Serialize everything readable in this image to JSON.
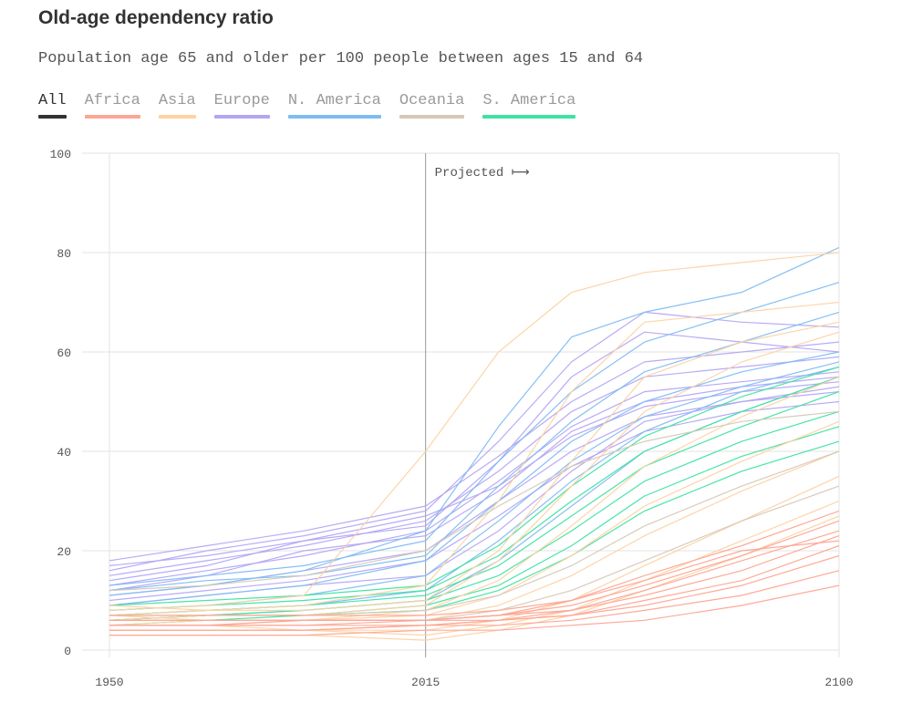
{
  "title": "Old-age dependency ratio",
  "subtitle": "Population age 65 and older per 100 people between ages 15 and 64",
  "legend": {
    "items": [
      {
        "label": "All",
        "color": "#333333",
        "active": true
      },
      {
        "label": "Africa",
        "color": "#fda594",
        "active": false
      },
      {
        "label": "Asia",
        "color": "#fdd2a4",
        "active": false
      },
      {
        "label": "Europe",
        "color": "#b3a6f5",
        "active": false
      },
      {
        "label": "N. America",
        "color": "#7fbcf2",
        "active": false
      },
      {
        "label": "Oceania",
        "color": "#d6c8b7",
        "active": false
      },
      {
        "label": "S. America",
        "color": "#3ee3a1",
        "active": false
      }
    ]
  },
  "chart_data": {
    "type": "line",
    "xlim": [
      1950,
      2100
    ],
    "ylim": [
      0,
      100
    ],
    "x_ticks": [
      1950,
      2015,
      2100
    ],
    "y_ticks": [
      0,
      20,
      40,
      60,
      80,
      100
    ],
    "grid": true,
    "annotation": {
      "text": "Projected ⟼",
      "x": 2015
    },
    "x": [
      1950,
      1970,
      1990,
      2015,
      2030,
      2045,
      2060,
      2080,
      2100
    ],
    "series": [
      {
        "region": "Europe",
        "color": "#b3a6f5",
        "values": [
          18,
          21,
          24,
          29,
          39,
          50,
          58,
          60,
          62
        ]
      },
      {
        "region": "Europe",
        "color": "#b3a6f5",
        "values": [
          15,
          18,
          21,
          26,
          36,
          48,
          55,
          57,
          59
        ]
      },
      {
        "region": "Europe",
        "color": "#b3a6f5",
        "values": [
          13,
          16,
          19,
          24,
          34,
          45,
          52,
          54,
          56
        ]
      },
      {
        "region": "Europe",
        "color": "#b3a6f5",
        "values": [
          16,
          20,
          23,
          28,
          42,
          58,
          68,
          66,
          65
        ]
      },
      {
        "region": "Europe",
        "color": "#b3a6f5",
        "values": [
          11,
          13,
          16,
          20,
          30,
          40,
          47,
          50,
          52
        ]
      },
      {
        "region": "Europe",
        "color": "#b3a6f5",
        "values": [
          12,
          15,
          20,
          23,
          32,
          44,
          50,
          53,
          55
        ]
      },
      {
        "region": "Europe",
        "color": "#b3a6f5",
        "values": [
          14,
          17,
          22,
          25,
          38,
          55,
          64,
          62,
          60
        ]
      },
      {
        "region": "Europe",
        "color": "#b3a6f5",
        "values": [
          10,
          12,
          14,
          18,
          27,
          37,
          44,
          48,
          50
        ]
      },
      {
        "region": "Europe",
        "color": "#b3a6f5",
        "values": [
          17,
          19,
          22,
          27,
          33,
          43,
          49,
          52,
          54
        ]
      },
      {
        "region": "Europe",
        "color": "#b3a6f5",
        "values": [
          9,
          11,
          13,
          15,
          24,
          36,
          46,
          50,
          53
        ]
      },
      {
        "region": "N. America",
        "color": "#7fbcf2",
        "values": [
          13,
          15,
          17,
          22,
          38,
          52,
          62,
          68,
          74
        ]
      },
      {
        "region": "N. America",
        "color": "#7fbcf2",
        "values": [
          11,
          13,
          16,
          24,
          45,
          63,
          68,
          72,
          81
        ]
      },
      {
        "region": "N. America",
        "color": "#7fbcf2",
        "values": [
          9,
          11,
          13,
          18,
          30,
          42,
          50,
          56,
          60
        ]
      },
      {
        "region": "N. America",
        "color": "#7fbcf2",
        "values": [
          8,
          9,
          11,
          15,
          26,
          38,
          47,
          53,
          58
        ]
      },
      {
        "region": "N. America",
        "color": "#7fbcf2",
        "values": [
          7,
          8,
          9,
          12,
          22,
          34,
          44,
          52,
          57
        ]
      },
      {
        "region": "N. America",
        "color": "#7fbcf2",
        "values": [
          12,
          14,
          15,
          19,
          33,
          46,
          56,
          62,
          68
        ]
      },
      {
        "region": "N. America",
        "color": "#7fbcf2",
        "values": [
          6,
          7,
          8,
          10,
          18,
          29,
          40,
          48,
          55
        ]
      },
      {
        "region": "S. America",
        "color": "#3ee3a1",
        "values": [
          7,
          8,
          9,
          11,
          17,
          27,
          37,
          45,
          52
        ]
      },
      {
        "region": "S. America",
        "color": "#3ee3a1",
        "values": [
          6,
          7,
          8,
          10,
          15,
          24,
          34,
          42,
          48
        ]
      },
      {
        "region": "S. America",
        "color": "#3ee3a1",
        "values": [
          8,
          9,
          10,
          12,
          19,
          30,
          40,
          48,
          55
        ]
      },
      {
        "region": "S. America",
        "color": "#3ee3a1",
        "values": [
          5,
          6,
          7,
          9,
          13,
          21,
          31,
          39,
          45
        ]
      },
      {
        "region": "S. America",
        "color": "#3ee3a1",
        "values": [
          9,
          10,
          11,
          13,
          21,
          33,
          43,
          51,
          57
        ]
      },
      {
        "region": "S. America",
        "color": "#3ee3a1",
        "values": [
          6,
          7,
          7,
          8,
          12,
          19,
          28,
          36,
          42
        ]
      },
      {
        "region": "Asia",
        "color": "#fdd2a4",
        "values": [
          8,
          9,
          11,
          40,
          60,
          72,
          76,
          78,
          80
        ]
      },
      {
        "region": "Asia",
        "color": "#fdd2a4",
        "values": [
          7,
          8,
          9,
          13,
          30,
          52,
          66,
          68,
          70
        ]
      },
      {
        "region": "Asia",
        "color": "#fdd2a4",
        "values": [
          6,
          7,
          7,
          9,
          18,
          33,
          48,
          58,
          64
        ]
      },
      {
        "region": "Asia",
        "color": "#fdd2a4",
        "values": [
          5,
          6,
          6,
          8,
          14,
          25,
          37,
          47,
          55
        ]
      },
      {
        "region": "Asia",
        "color": "#fdd2a4",
        "values": [
          6,
          6,
          6,
          7,
          11,
          19,
          29,
          38,
          46
        ]
      },
      {
        "region": "Asia",
        "color": "#fdd2a4",
        "values": [
          7,
          6,
          6,
          6,
          9,
          15,
          23,
          32,
          40
        ]
      },
      {
        "region": "Asia",
        "color": "#fdd2a4",
        "values": [
          5,
          5,
          4,
          4,
          6,
          10,
          17,
          26,
          35
        ]
      },
      {
        "region": "Asia",
        "color": "#fdd2a4",
        "values": [
          4,
          4,
          4,
          3,
          5,
          8,
          14,
          22,
          30
        ]
      },
      {
        "region": "Asia",
        "color": "#fdd2a4",
        "values": [
          3,
          3,
          3,
          2,
          4,
          7,
          12,
          19,
          27
        ]
      },
      {
        "region": "Asia",
        "color": "#fdd2a4",
        "values": [
          9,
          8,
          8,
          10,
          20,
          38,
          55,
          62,
          66
        ]
      },
      {
        "region": "Oceania",
        "color": "#d6c8b7",
        "values": [
          12,
          13,
          15,
          20,
          29,
          37,
          42,
          46,
          48
        ]
      },
      {
        "region": "Oceania",
        "color": "#d6c8b7",
        "values": [
          7,
          7,
          7,
          8,
          11,
          17,
          25,
          33,
          40
        ]
      },
      {
        "region": "Oceania",
        "color": "#d6c8b7",
        "values": [
          5,
          5,
          6,
          6,
          8,
          12,
          18,
          26,
          33
        ]
      },
      {
        "region": "Africa",
        "color": "#fda594",
        "values": [
          6,
          6,
          6,
          6,
          7,
          8,
          11,
          16,
          23
        ]
      },
      {
        "region": "Africa",
        "color": "#fda594",
        "values": [
          5,
          5,
          5,
          5,
          6,
          7,
          9,
          13,
          19
        ]
      },
      {
        "region": "Africa",
        "color": "#fda594",
        "values": [
          4,
          4,
          4,
          5,
          5,
          6,
          8,
          11,
          16
        ]
      },
      {
        "region": "Africa",
        "color": "#fda594",
        "values": [
          3,
          3,
          3,
          4,
          4,
          5,
          6,
          9,
          13
        ]
      },
      {
        "region": "Africa",
        "color": "#fda594",
        "values": [
          6,
          6,
          6,
          6,
          7,
          9,
          13,
          19,
          26
        ]
      },
      {
        "region": "Africa",
        "color": "#fda594",
        "values": [
          5,
          5,
          5,
          6,
          7,
          10,
          15,
          21,
          28
        ]
      },
      {
        "region": "Africa",
        "color": "#fda594",
        "values": [
          4,
          4,
          4,
          5,
          6,
          8,
          12,
          18,
          24
        ]
      },
      {
        "region": "Africa",
        "color": "#fda594",
        "values": [
          7,
          7,
          7,
          7,
          8,
          10,
          14,
          20,
          22
        ]
      },
      {
        "region": "Africa",
        "color": "#fda594",
        "values": [
          5,
          5,
          6,
          6,
          6,
          7,
          10,
          14,
          21
        ]
      }
    ]
  }
}
